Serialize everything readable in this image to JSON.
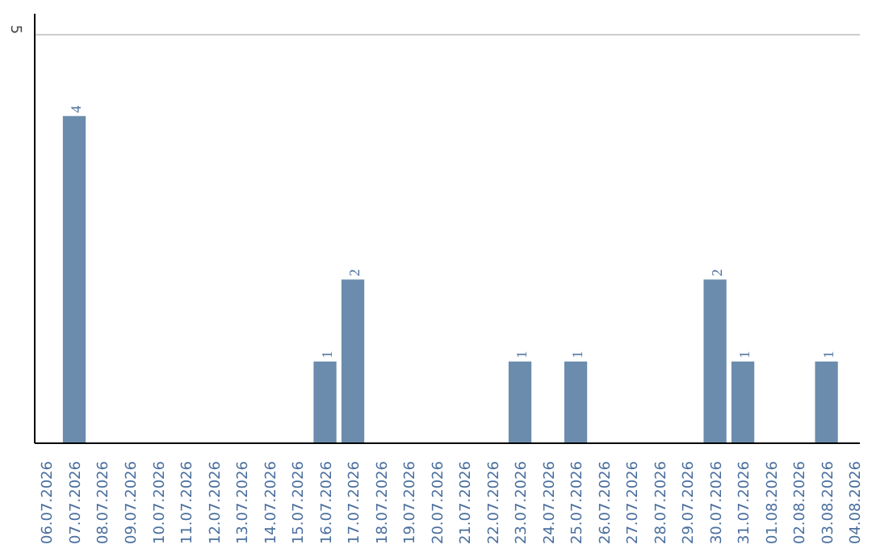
{
  "chart_data": {
    "type": "bar",
    "categories": [
      "06.07.2026",
      "07.07.2026",
      "08.07.2026",
      "09.07.2026",
      "10.07.2026",
      "11.07.2026",
      "12.07.2026",
      "13.07.2026",
      "14.07.2026",
      "15.07.2026",
      "16.07.2026",
      "17.07.2026",
      "18.07.2026",
      "19.07.2026",
      "20.07.2026",
      "21.07.2026",
      "22.07.2026",
      "23.07.2026",
      "24.07.2026",
      "25.07.2026",
      "26.07.2026",
      "27.07.2026",
      "28.07.2026",
      "29.07.2026",
      "30.07.2026",
      "31.07.2026",
      "01.08.2026",
      "02.08.2026",
      "03.08.2026",
      "04.08.2026"
    ],
    "values": [
      0,
      4,
      0,
      0,
      0,
      0,
      0,
      0,
      0,
      0,
      1,
      2,
      0,
      0,
      0,
      0,
      0,
      1,
      0,
      1,
      0,
      0,
      0,
      0,
      2,
      1,
      0,
      0,
      1,
      0
    ],
    "color": "#6b8cad",
    "ylim": [
      0,
      5.25
    ],
    "yticks": [
      5
    ],
    "value_labels": [
      null,
      "4",
      null,
      null,
      null,
      null,
      null,
      null,
      null,
      null,
      "1",
      "2",
      null,
      null,
      null,
      null,
      null,
      "1",
      null,
      "1",
      null,
      null,
      null,
      null,
      "2",
      "1",
      null,
      null,
      "1",
      null
    ],
    "grid": "y"
  }
}
